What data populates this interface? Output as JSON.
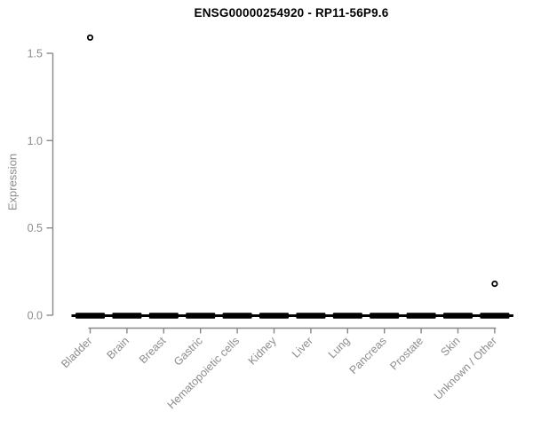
{
  "chart_data": {
    "type": "boxplot",
    "title": "ENSG00000254920 - RP11-56P9.6",
    "xlabel": "",
    "ylabel": "Expression",
    "ylim": [
      0,
      1.5
    ],
    "yticks": [
      0.0,
      0.5,
      1.0,
      1.5
    ],
    "ytick_labels": [
      "0.0",
      "0.5",
      "1.0",
      "1.5"
    ],
    "grid": false,
    "legend": false,
    "categories": [
      "Bladder",
      "Brain",
      "Breast",
      "Gastric",
      "Hematopoietic cells",
      "Kidney",
      "Liver",
      "Lung",
      "Pancreas",
      "Prostate",
      "Skin",
      "Unknown / Other"
    ],
    "boxes": [
      {
        "category": "Bladder",
        "median": 0,
        "q1": 0,
        "q3": 0,
        "whisker_low": 0,
        "whisker_high": 0,
        "outliers": [
          1.59
        ]
      },
      {
        "category": "Brain",
        "median": 0,
        "q1": 0,
        "q3": 0,
        "whisker_low": 0,
        "whisker_high": 0,
        "outliers": []
      },
      {
        "category": "Breast",
        "median": 0,
        "q1": 0,
        "q3": 0,
        "whisker_low": 0,
        "whisker_high": 0,
        "outliers": []
      },
      {
        "category": "Gastric",
        "median": 0,
        "q1": 0,
        "q3": 0,
        "whisker_low": 0,
        "whisker_high": 0,
        "outliers": []
      },
      {
        "category": "Hematopoietic cells",
        "median": 0,
        "q1": 0,
        "q3": 0,
        "whisker_low": 0,
        "whisker_high": 0,
        "outliers": []
      },
      {
        "category": "Kidney",
        "median": 0,
        "q1": 0,
        "q3": 0,
        "whisker_low": 0,
        "whisker_high": 0,
        "outliers": []
      },
      {
        "category": "Liver",
        "median": 0,
        "q1": 0,
        "q3": 0,
        "whisker_low": 0,
        "whisker_high": 0,
        "outliers": []
      },
      {
        "category": "Lung",
        "median": 0,
        "q1": 0,
        "q3": 0,
        "whisker_low": 0,
        "whisker_high": 0,
        "outliers": []
      },
      {
        "category": "Pancreas",
        "median": 0,
        "q1": 0,
        "q3": 0,
        "whisker_low": 0,
        "whisker_high": 0,
        "outliers": []
      },
      {
        "category": "Prostate",
        "median": 0,
        "q1": 0,
        "q3": 0,
        "whisker_low": 0,
        "whisker_high": 0,
        "outliers": []
      },
      {
        "category": "Skin",
        "median": 0,
        "q1": 0,
        "q3": 0,
        "whisker_low": 0,
        "whisker_high": 0,
        "outliers": []
      },
      {
        "category": "Unknown / Other",
        "median": 0,
        "q1": 0,
        "q3": 0,
        "whisker_low": 0,
        "whisker_high": 0,
        "outliers": [
          0.18
        ]
      }
    ],
    "colors": {
      "box_fill": "#000000",
      "axis": "#888888",
      "tick_label": "#8c8c8c",
      "title": "#000000",
      "outlier_stroke": "#000000",
      "background": "#ffffff"
    }
  }
}
